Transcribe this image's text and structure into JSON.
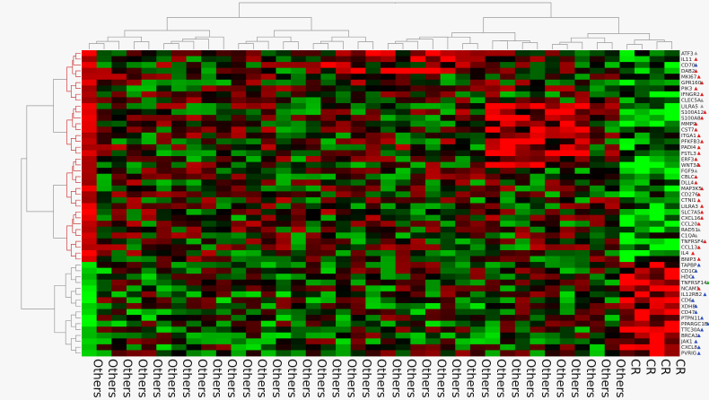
{
  "chart_data": {
    "type": "heatmap",
    "title": "",
    "xlabel": "",
    "ylabel": "",
    "color_scale": {
      "low": "#00ff00",
      "mid": "#000000",
      "high": "#ff0000"
    },
    "columns": [
      "Others",
      "Others",
      "Others",
      "Others",
      "Others",
      "Others",
      "Others",
      "Others",
      "Others",
      "Others",
      "Others",
      "Others",
      "Others",
      "Others",
      "Others",
      "Others",
      "Others",
      "Others",
      "Others",
      "Others",
      "Others",
      "Others",
      "Others",
      "Others",
      "Others",
      "Others",
      "Others",
      "Others",
      "Others",
      "Others",
      "Others",
      "Others",
      "Others",
      "Others",
      "Others",
      "Others",
      "CR",
      "CR",
      "CR",
      "CR"
    ],
    "rows": [
      {
        "label": "ATF3",
        "marker": "#999999"
      },
      {
        "label": "IL11",
        "marker": "#e02020"
      },
      {
        "label": "CD70",
        "marker": "#3050c0"
      },
      {
        "label": "DAB2",
        "marker": "#e02020"
      },
      {
        "label": "MKI67",
        "marker": "#e02020"
      },
      {
        "label": "GPR160",
        "marker": "#e02020"
      },
      {
        "label": "PIK3",
        "marker": "#e02020"
      },
      {
        "label": "IFNGR2",
        "marker": "#e02020"
      },
      {
        "label": "CLEC5A",
        "marker": "#999999"
      },
      {
        "label": "LILRA5",
        "marker": "#999999"
      },
      {
        "label": "S100A12",
        "marker": "#e02020"
      },
      {
        "label": "S100A8",
        "marker": "#e02020"
      },
      {
        "label": "MMP9",
        "marker": "#e02020"
      },
      {
        "label": "CST7",
        "marker": "#e02020"
      },
      {
        "label": "ITGA1",
        "marker": "#e02020"
      },
      {
        "label": "PFKFB3",
        "marker": "#e02020"
      },
      {
        "label": "PADI4",
        "marker": "#e02020"
      },
      {
        "label": "FSTL3",
        "marker": "#e02020"
      },
      {
        "label": "ERF3",
        "marker": "#e02020"
      },
      {
        "label": "WNT3A",
        "marker": "#e02020"
      },
      {
        "label": "FGF9",
        "marker": "#999999"
      },
      {
        "label": "CBLC",
        "marker": "#e02020"
      },
      {
        "label": "DLL4",
        "marker": "#e02020"
      },
      {
        "label": "MAP3K5",
        "marker": "#e02020"
      },
      {
        "label": "CD276",
        "marker": "#e02020"
      },
      {
        "label": "CTNI1",
        "marker": "#e02020"
      },
      {
        "label": "LILRA3",
        "marker": "#e02020"
      },
      {
        "label": "SLC7A5",
        "marker": "#e02020"
      },
      {
        "label": "CXCL16",
        "marker": "#e02020"
      },
      {
        "label": "CCL20",
        "marker": "#e02020"
      },
      {
        "label": "RAD51",
        "marker": "#999999"
      },
      {
        "label": "C1QA",
        "marker": "#999999"
      },
      {
        "label": "TNFRSF4",
        "marker": "#e02020"
      },
      {
        "label": "CCL13",
        "marker": "#e02020"
      },
      {
        "label": "IL4",
        "marker": "#e02020"
      },
      {
        "label": "BNIP3",
        "marker": "#e02020"
      },
      {
        "label": "TAPBP",
        "marker": "#3050c0"
      },
      {
        "label": "CD1C",
        "marker": "#3050c0"
      },
      {
        "label": "HDC",
        "marker": "#3050c0"
      },
      {
        "label": "TNFRSF14",
        "marker": "#20b020"
      },
      {
        "label": "NCAM1",
        "marker": "#e02020"
      },
      {
        "label": "IL12RB2",
        "marker": "#3050c0"
      },
      {
        "label": "CD6",
        "marker": "#3050c0"
      },
      {
        "label": "XDH8",
        "marker": "#3050c0"
      },
      {
        "label": "CD47",
        "marker": "#3050c0"
      },
      {
        "label": "PTPN11",
        "marker": "#3050c0"
      },
      {
        "label": "PPARGC1B",
        "marker": "#3050c0"
      },
      {
        "label": "TTC30A",
        "marker": "#3050c0"
      },
      {
        "label": "BRCA2",
        "marker": "#3050c0"
      },
      {
        "label": "JAK1",
        "marker": "#3050c0"
      },
      {
        "label": "CXCL8",
        "marker": "#3050c0"
      },
      {
        "label": "PVRIG",
        "marker": "#3050c0"
      }
    ],
    "value_range": [
      -1,
      1
    ]
  }
}
